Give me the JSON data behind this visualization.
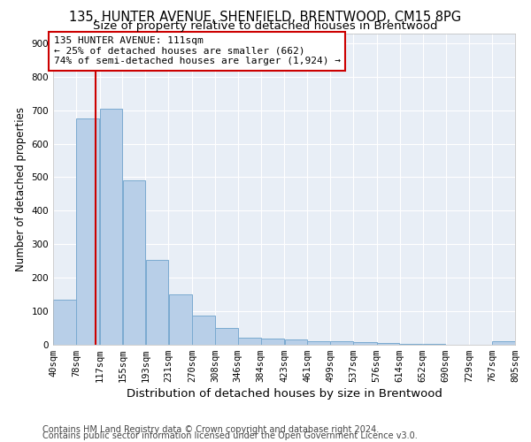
{
  "title1": "135, HUNTER AVENUE, SHENFIELD, BRENTWOOD, CM15 8PG",
  "title2": "Size of property relative to detached houses in Brentwood",
  "xlabel": "Distribution of detached houses by size in Brentwood",
  "ylabel": "Number of detached properties",
  "bin_edges": [
    40,
    78,
    117,
    155,
    193,
    231,
    270,
    308,
    346,
    384,
    423,
    461,
    499,
    537,
    576,
    614,
    652,
    690,
    729,
    767,
    805
  ],
  "bar_heights": [
    135,
    675,
    705,
    492,
    252,
    150,
    87,
    50,
    22,
    19,
    17,
    10,
    10,
    9,
    5,
    3,
    2,
    1,
    1,
    10
  ],
  "bar_color": "#b8cfe8",
  "bar_edge_color": "#7aaad0",
  "property_size": 111,
  "vline_color": "#cc0000",
  "ann_line1": "135 HUNTER AVENUE: 111sqm",
  "ann_line2": "← 25% of detached houses are smaller (662)",
  "ann_line3": "74% of semi-detached houses are larger (1,924) →",
  "annotation_box_color": "#ffffff",
  "annotation_box_edge": "#cc0000",
  "ylim": [
    0,
    930
  ],
  "yticks": [
    0,
    100,
    200,
    300,
    400,
    500,
    600,
    700,
    800,
    900
  ],
  "footer1": "Contains HM Land Registry data © Crown copyright and database right 2024.",
  "footer2": "Contains public sector information licensed under the Open Government Licence v3.0.",
  "bg_color": "#e8eef6",
  "grid_color": "#ffffff",
  "title1_fontsize": 10.5,
  "title2_fontsize": 9.5,
  "xlabel_fontsize": 9.5,
  "ylabel_fontsize": 8.5,
  "tick_fontsize": 7.5,
  "ann_fontsize": 8,
  "footer_fontsize": 7
}
